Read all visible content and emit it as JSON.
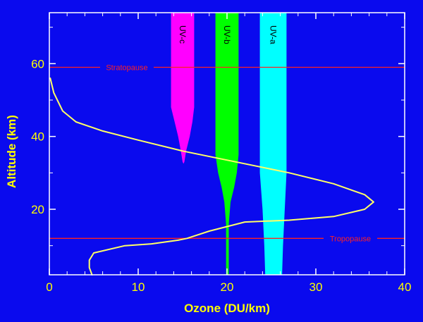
{
  "chart_data": {
    "type": "line",
    "title": "",
    "xlabel": "Ozone (DU/km)",
    "ylabel": "Altitude (km)",
    "xlim": [
      0,
      40
    ],
    "ylim": [
      2,
      74
    ],
    "xticks": [
      0,
      10,
      20,
      30,
      40
    ],
    "yticks": [
      20,
      40,
      60
    ],
    "grid": false,
    "colors": {
      "background": "#0a0aee",
      "axis": "#ffffff",
      "labels": "#ffff00",
      "profile": "#ffff66",
      "reference_lines": "#ff2222",
      "uv_c": "#ff00ff",
      "uv_b": "#00ff00",
      "uv_a": "#00ffff"
    },
    "series": [
      {
        "x": [
          0.1,
          0.5,
          1.5,
          3,
          6,
          10,
          15,
          21,
          27,
          32,
          35.5,
          36.5,
          35.5,
          32,
          27,
          22,
          18,
          15.5,
          14.5,
          11.5,
          8.5,
          5,
          4.5,
          4.5,
          4.8
        ],
        "y": [
          56,
          52,
          47,
          44,
          41.5,
          39,
          36,
          33,
          30,
          27,
          24,
          22,
          20,
          18,
          17,
          16.5,
          14,
          12,
          11.5,
          10.5,
          10,
          8,
          6,
          4,
          2
        ]
      }
    ],
    "reference_lines": [
      {
        "label": "Stratopause",
        "y": 59
      },
      {
        "label": "Tropopause",
        "y": 12
      }
    ],
    "bands": [
      {
        "label": "UV-c",
        "top": 74,
        "color": "#ff00ff",
        "profile": [
          [
            74,
            13.7,
            16.3
          ],
          [
            48,
            13.7,
            16.3
          ],
          [
            44,
            14.1,
            16.1
          ],
          [
            40,
            14.5,
            15.8
          ],
          [
            36,
            14.8,
            15.4
          ],
          [
            33,
            15.0,
            15.2
          ],
          [
            32.5,
            15.1,
            15.1
          ]
        ]
      },
      {
        "label": "UV-b",
        "top": 74,
        "color": "#00ff00",
        "profile": [
          [
            74,
            18.7,
            21.3
          ],
          [
            35,
            18.7,
            21.3
          ],
          [
            30,
            19.0,
            21.1
          ],
          [
            26,
            19.4,
            20.8
          ],
          [
            22,
            19.7,
            20.4
          ],
          [
            16,
            19.9,
            20.2
          ],
          [
            2,
            19.9,
            20.2
          ]
        ]
      },
      {
        "label": "UV-a",
        "top": 74,
        "color": "#00ffff",
        "profile": [
          [
            74,
            23.7,
            26.7
          ],
          [
            30,
            23.7,
            26.7
          ],
          [
            20,
            24.0,
            26.5
          ],
          [
            10,
            24.2,
            26.3
          ],
          [
            2,
            24.3,
            26.2
          ]
        ]
      }
    ]
  }
}
